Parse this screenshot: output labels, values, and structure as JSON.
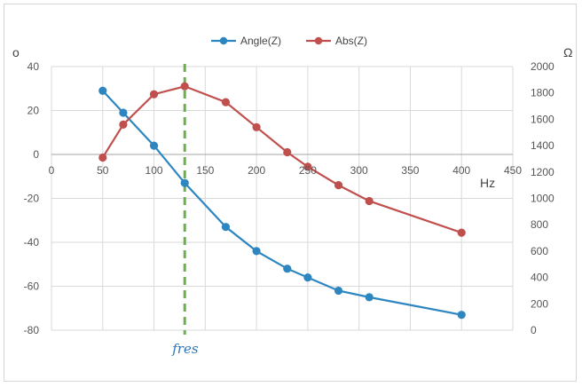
{
  "chart_data": {
    "type": "line",
    "xlabel": "Hz",
    "ylabel_left": "o",
    "ylabel_right": "Ω",
    "xlim": [
      0,
      450
    ],
    "ylim_left": [
      -80,
      40
    ],
    "ylim_right": [
      0,
      2000
    ],
    "x_ticks": [
      0,
      50,
      100,
      150,
      200,
      250,
      300,
      350,
      400,
      450
    ],
    "y_left_ticks": [
      -80,
      -60,
      -40,
      -20,
      0,
      20,
      40
    ],
    "y_right_ticks": [
      0,
      200,
      400,
      600,
      800,
      1000,
      1200,
      1400,
      1600,
      1800,
      2000
    ],
    "grid": true,
    "legend": "top-center",
    "series": [
      {
        "name": "Angle(Z)",
        "axis": "left",
        "color": "#2e86c1",
        "x": [
          50,
          70,
          100,
          130,
          170,
          200,
          230,
          250,
          280,
          310,
          400
        ],
        "y": [
          29,
          19,
          4,
          -13,
          -33,
          -44,
          -52,
          -56,
          -62,
          -65,
          -73
        ]
      },
      {
        "name": "Abs(Z)",
        "axis": "right",
        "color": "#c0504d",
        "x": [
          50,
          70,
          100,
          130,
          170,
          200,
          230,
          250,
          280,
          310,
          400
        ],
        "y": [
          1310,
          1560,
          1790,
          1850,
          1730,
          1540,
          1350,
          1240,
          1100,
          980,
          740
        ]
      }
    ],
    "annotations": [
      {
        "type": "vline",
        "x": 130,
        "label": "fres",
        "color": "#6ab04c"
      }
    ]
  }
}
